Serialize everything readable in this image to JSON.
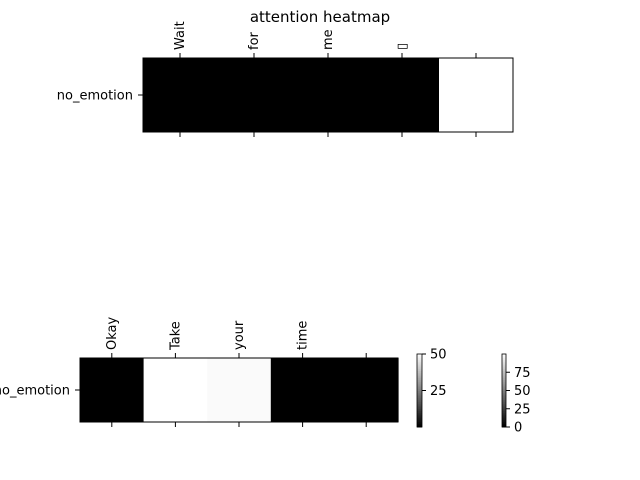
{
  "chart_data": [
    {
      "type": "heatmap",
      "title": "attention heatmap",
      "y_labels": [
        "no_emotion"
      ],
      "x_labels": [
        "Wait",
        "for",
        "me",
        "▯",
        ""
      ],
      "values": [
        [
          0,
          0,
          0,
          0,
          100
        ]
      ],
      "colormap": "gray"
    },
    {
      "type": "heatmap",
      "title": "",
      "y_labels": [
        "no_emotion"
      ],
      "x_labels": [
        "Okay",
        "Take",
        "your",
        "time",
        ""
      ],
      "values": [
        [
          0,
          50,
          49,
          0,
          0
        ]
      ],
      "colormap": "gray",
      "colorbars": [
        {
          "range": [
            0,
            50
          ],
          "ticks": [
            "25",
            "50"
          ]
        },
        {
          "range": [
            0,
            100
          ],
          "ticks": [
            "0",
            "25",
            "50",
            "75"
          ]
        }
      ]
    }
  ]
}
